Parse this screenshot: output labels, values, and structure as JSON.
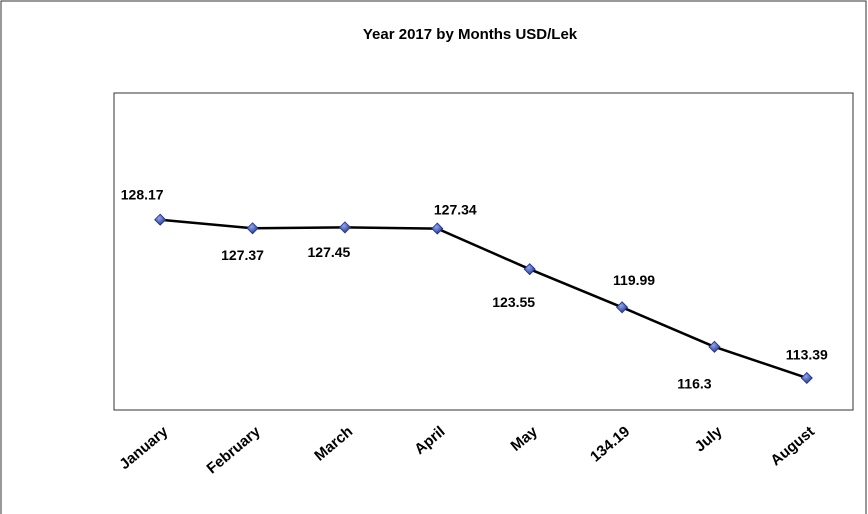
{
  "chart_data": {
    "type": "line",
    "title": "Year 2017  by Months USD/Lek",
    "categories": [
      "January",
      "February",
      "March",
      "April",
      "May",
      "134.19",
      "July",
      "August"
    ],
    "series": [
      {
        "name": "USD/Lek",
        "color": "#000000",
        "marker_color": "#1f2f8c",
        "values": [
          128.17,
          127.37,
          127.45,
          127.34,
          123.55,
          119.99,
          116.3,
          113.39
        ]
      }
    ],
    "ylim": [
      110.4,
      140
    ]
  }
}
